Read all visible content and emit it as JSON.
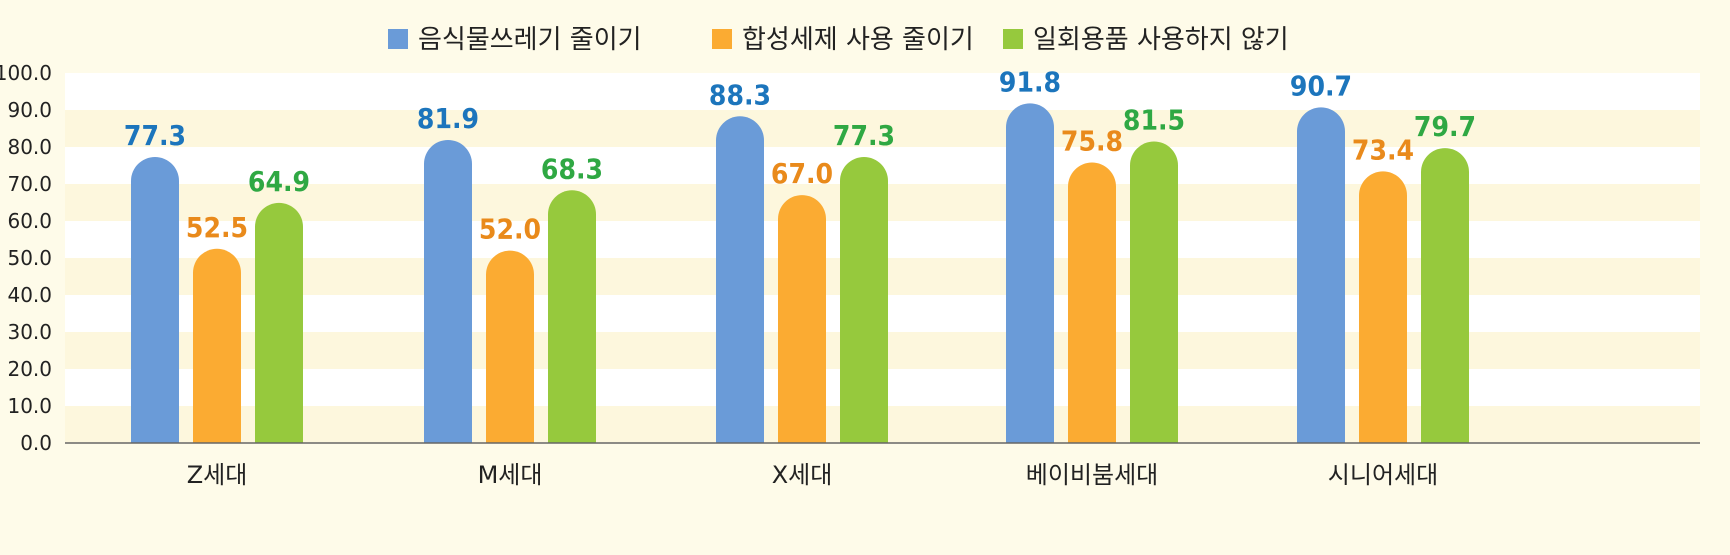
{
  "chart_data": {
    "type": "bar",
    "categories": [
      "Z세대",
      "M세대",
      "X세대",
      "베이비붐세대",
      "시니어세대"
    ],
    "series": [
      {
        "name": "음식물쓰레기 줄이기",
        "values": [
          77.3,
          81.9,
          88.3,
          91.8,
          90.7
        ]
      },
      {
        "name": "합성세제 사용 줄이기",
        "values": [
          52.5,
          52.0,
          67.0,
          75.8,
          73.4
        ]
      },
      {
        "name": "일회용품 사용하지 않기",
        "values": [
          64.9,
          68.3,
          77.3,
          81.5,
          79.7
        ]
      }
    ],
    "y_ticks": [
      "0.0",
      "10.0",
      "20.0",
      "30.0",
      "40.0",
      "50.0",
      "60.0",
      "70.0",
      "80.0",
      "90.0",
      "100.0"
    ],
    "ylim": [
      0,
      100
    ],
    "legend_position": "top-center",
    "grid": "alternating horizontal bands",
    "colors": {
      "series": [
        "#6a9bd8",
        "#fbab32",
        "#96c93d"
      ],
      "value_labels": [
        "#1c75bc",
        "#e98a1b",
        "#2fa843"
      ],
      "band_light": "#ffffff",
      "band_tint": "#fdf7dd",
      "axis": "#666666"
    }
  }
}
